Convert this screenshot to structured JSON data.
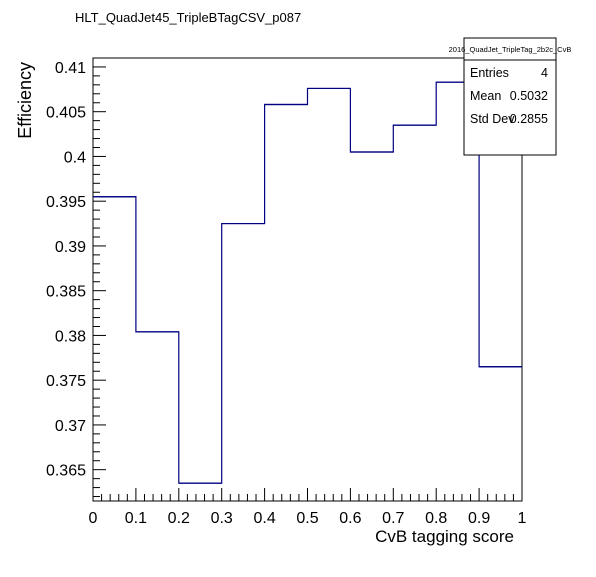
{
  "chart_data": {
    "type": "histogram-step",
    "title": "HLT_QuadJet45_TripleBTagCSV_p087",
    "xlabel": "CvB tagging score",
    "ylabel": "Efficiency",
    "xlim": [
      0,
      1
    ],
    "ylim": [
      0.3615,
      0.411
    ],
    "x_ticks": [
      0,
      0.1,
      0.2,
      0.3,
      0.4,
      0.5,
      0.6,
      0.7,
      0.8,
      0.9,
      1
    ],
    "x_tick_labels": [
      "0",
      "0.1",
      "0.2",
      "0.3",
      "0.4",
      "0.5",
      "0.6",
      "0.7",
      "0.8",
      "0.9",
      "1"
    ],
    "y_ticks": [
      0.365,
      0.37,
      0.375,
      0.38,
      0.385,
      0.39,
      0.395,
      0.4,
      0.405,
      0.41
    ],
    "y_tick_labels": [
      "0.365",
      "0.37",
      "0.375",
      "0.38",
      "0.385",
      "0.39",
      "0.395",
      "0.4",
      "0.405",
      "0.41"
    ],
    "bin_edges": [
      0,
      0.1,
      0.2,
      0.3,
      0.4,
      0.5,
      0.6,
      0.7,
      0.8,
      0.9,
      1.0
    ],
    "values": [
      0.3955,
      0.3804,
      0.3635,
      0.3925,
      0.4058,
      0.4076,
      0.4005,
      0.4035,
      0.4083,
      0.3765
    ],
    "line_color": "#000080",
    "stats_box": {
      "name": "2016_QuadJet_TripleTag_2b2c_CvB",
      "entries": [
        {
          "label": "Entries",
          "value": "4"
        },
        {
          "label": "Mean",
          "value": "0.5032"
        },
        {
          "label": "Std Dev",
          "value": "0.2855"
        }
      ]
    }
  }
}
